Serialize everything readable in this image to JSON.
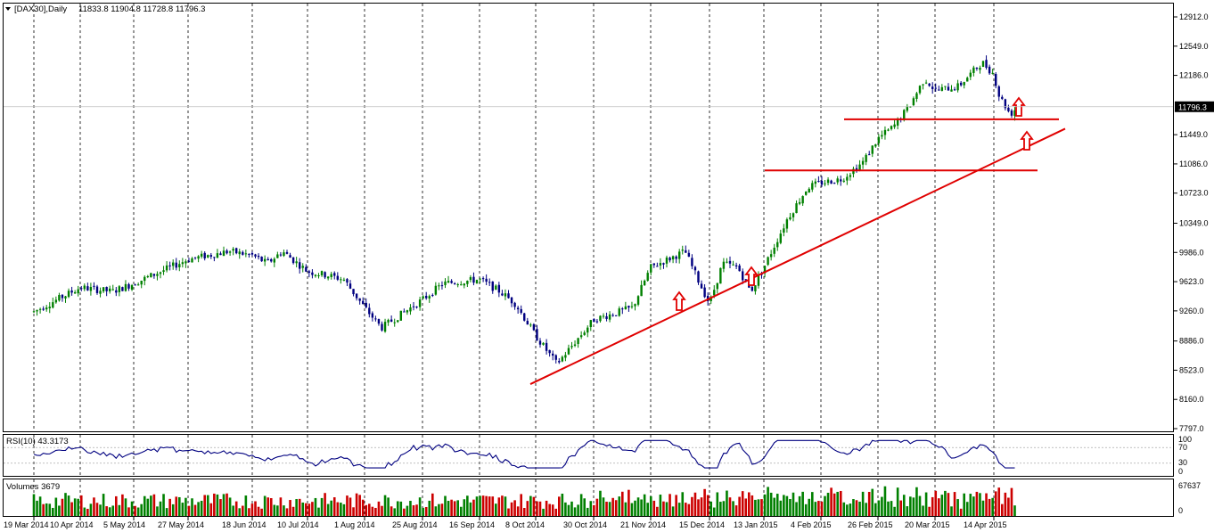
{
  "header": {
    "symbol": "[DAX30],Daily",
    "ohlc": "11833.8 11904.8 11728.8 11796.3"
  },
  "rsi_panel": {
    "label": "RSI(10) 43.3173",
    "levels": [
      "100",
      "70",
      "30",
      "0"
    ]
  },
  "volume_panel": {
    "label": "Volumes 3679",
    "max_label": "67637",
    "min_label": "0"
  },
  "price_axis": {
    "ticks": [
      "12912.0",
      "12549.0",
      "12186.0",
      "11449.0",
      "11086.0",
      "10723.0",
      "10349.0",
      "9986.0",
      "9623.0",
      "9260.0",
      "8886.0",
      "8523.0",
      "8160.0",
      "7797.0"
    ],
    "current_price": "11796.3"
  },
  "date_axis": {
    "ticks": [
      "19 Mar 2014",
      "10 Apr 2014",
      "5 May 2014",
      "27 May 2014",
      "18 Jun 2014",
      "10 Jul 2014",
      "1 Aug 2014",
      "25 Aug 2014",
      "16 Sep 2014",
      "8 Oct 2014",
      "30 Oct 2014",
      "21 Nov 2014",
      "15 Dec 2014",
      "13 Jan 2015",
      "4 Feb 2015",
      "26 Feb 2015",
      "20 Mar 2015",
      "14 Apr 2015"
    ]
  },
  "colors": {
    "up_candle": "#008000",
    "down_candle": "#000080",
    "rsi_line": "#000080",
    "volume_up": "#008000",
    "volume_down": "#cc0000",
    "annotation": "#e00000",
    "current_price_bg": "#000000"
  },
  "chart_data": {
    "type": "candlestick",
    "series_path": [
      [
        "19 Mar 2014",
        9250
      ],
      [
        "10 Apr 2014",
        9550
      ],
      [
        "25 Apr 2014",
        9500
      ],
      [
        "5 May 2014",
        9600
      ],
      [
        "27 May 2014",
        9900
      ],
      [
        "10 Jun 2014",
        10000
      ],
      [
        "18 Jun 2014",
        9950
      ],
      [
        "24 Jun 2014",
        9850
      ],
      [
        "30 Jun 2014",
        10000
      ],
      [
        "10 Jul 2014",
        9750
      ],
      [
        "18 Jul 2014",
        9700
      ],
      [
        "24 Jul 2014",
        9650
      ],
      [
        "1 Aug 2014",
        9300
      ],
      [
        "8 Aug 2014",
        9050
      ],
      [
        "25 Aug 2014",
        9400
      ],
      [
        "2 Sep 2014",
        9600
      ],
      [
        "16 Sep 2014",
        9650
      ],
      [
        "24 Sep 2014",
        9500
      ],
      [
        "30 Sep 2014",
        9350
      ],
      [
        "8 Oct 2014",
        8950
      ],
      [
        "16 Oct 2014",
        8600
      ],
      [
        "30 Oct 2014",
        9150
      ],
      [
        "14 Nov 2014",
        9300
      ],
      [
        "21 Nov 2014",
        9800
      ],
      [
        "5 Dec 2014",
        10000
      ],
      [
        "11 Dec 2014",
        9600
      ],
      [
        "15 Dec 2014",
        9350
      ],
      [
        "22 Dec 2014",
        9850
      ],
      [
        "30 Dec 2014",
        9800
      ],
      [
        "6 Jan 2015",
        9500
      ],
      [
        "13 Jan 2015",
        9800
      ],
      [
        "22 Jan 2015",
        10400
      ],
      [
        "30 Jan 2015",
        10800
      ],
      [
        "4 Feb 2015",
        10850
      ],
      [
        "12 Feb 2015",
        10900
      ],
      [
        "20 Feb 2015",
        11100
      ],
      [
        "26 Feb 2015",
        11400
      ],
      [
        "4 Mar 2015",
        11550
      ],
      [
        "10 Mar 2015",
        11800
      ],
      [
        "16 Mar 2015",
        12150
      ],
      [
        "20 Mar 2015",
        12000
      ],
      [
        "30 Mar 2015",
        12050
      ],
      [
        "9 Apr 2015",
        12350
      ],
      [
        "14 Apr 2015",
        12200
      ],
      [
        "16 Apr 2015",
        11950
      ],
      [
        "21 Apr 2015",
        11700
      ],
      [
        "24 Apr 2015",
        11796.3
      ]
    ],
    "yaxis": {
      "min": 7797,
      "max": 12912
    },
    "indicators": {
      "rsi": {
        "period": 10,
        "value": 43.3173,
        "range": [
          0,
          100
        ]
      },
      "volume": {
        "value": 3679,
        "max": 67637
      }
    },
    "annotations": {
      "trendline": [
        [
          "8 Oct 2014",
          8350
        ],
        [
          "14 Apr 2015",
          11100
        ]
      ],
      "resistance_upper": 11640,
      "resistance_lower": 11005,
      "up_arrows": 5
    }
  }
}
